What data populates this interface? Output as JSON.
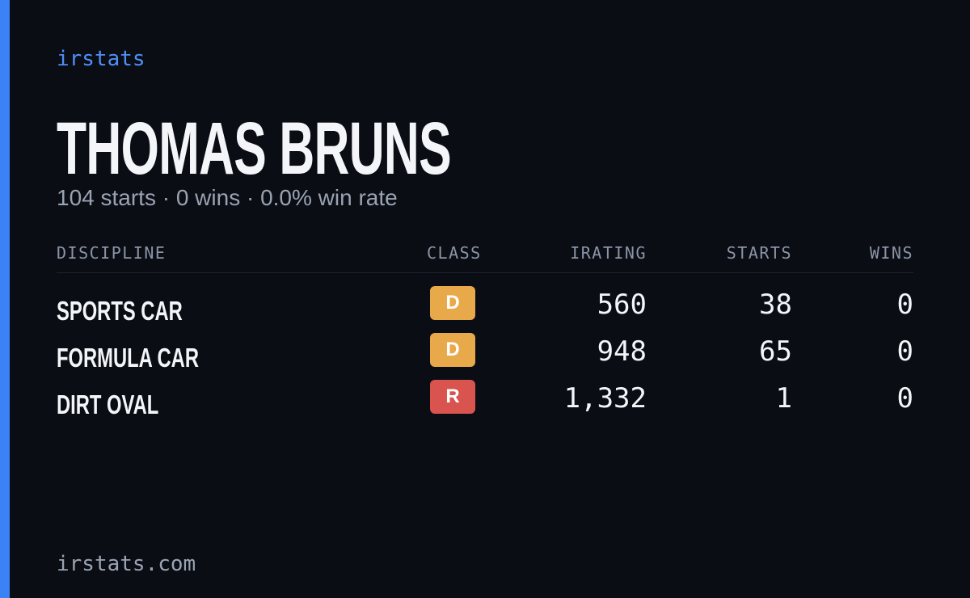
{
  "brand": "irstats",
  "driver": {
    "name": "THOMAS BRUNS",
    "summary": "104 starts · 0 wins · 0.0% win rate"
  },
  "table": {
    "headers": [
      "DISCIPLINE",
      "CLASS",
      "IRATING",
      "STARTS",
      "WINS"
    ],
    "rows": [
      {
        "discipline": "SPORTS CAR",
        "class": "D",
        "class_color": "#e8a94a",
        "irating": "560",
        "starts": "38",
        "wins": "0"
      },
      {
        "discipline": "FORMULA CAR",
        "class": "D",
        "class_color": "#e8a94a",
        "irating": "948",
        "starts": "65",
        "wins": "0"
      },
      {
        "discipline": "DIRT OVAL",
        "class": "R",
        "class_color": "#d9534f",
        "irating": "1,332",
        "starts": "1",
        "wins": "0"
      }
    ]
  },
  "footer": "irstats.com"
}
